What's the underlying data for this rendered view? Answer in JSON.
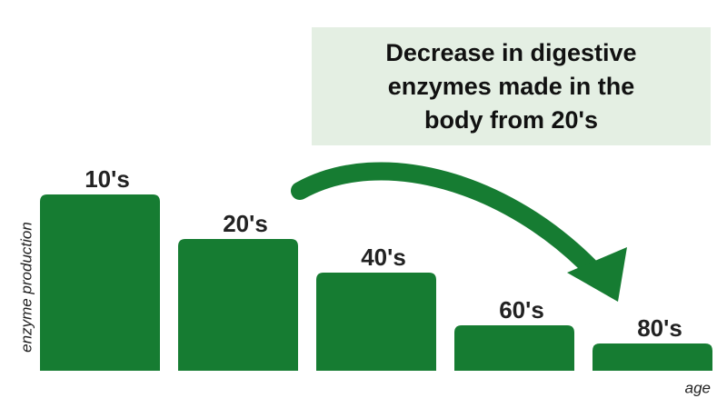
{
  "chart_data": {
    "type": "bar",
    "title": "Decrease in digestive enzymes made in the body from 20's",
    "x_label": "age",
    "y_label": "enzyme production",
    "categories": [
      "10's",
      "20's",
      "40's",
      "60's",
      "80's"
    ],
    "values": [
      194,
      145,
      108,
      50,
      30
    ],
    "color": "#167c32",
    "ylim": [
      0,
      200
    ]
  }
}
